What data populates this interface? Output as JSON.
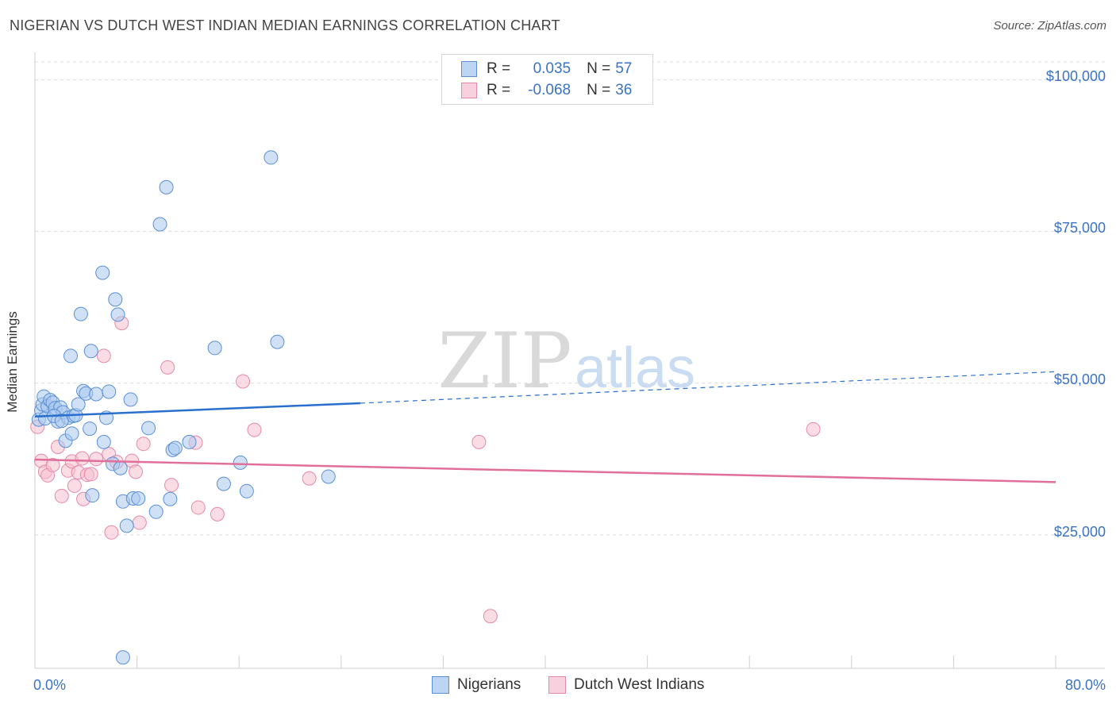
{
  "title": "NIGERIAN VS DUTCH WEST INDIAN MEDIAN EARNINGS CORRELATION CHART",
  "source": "Source: ZipAtlas.com",
  "watermark": {
    "zip": "ZIP",
    "atlas": "atlas"
  },
  "colors": {
    "blue_fill": "#a9c8ef",
    "blue_stroke": "#5b8fd6",
    "blue_line": "#2a6fce",
    "pink_fill": "#f5bfd0",
    "pink_stroke": "#e48aa8",
    "pink_line": "#e0709a",
    "grid": "#dcdcdc",
    "axis_text": "#3a72c4"
  },
  "legend": {
    "rows": [
      {
        "r_label": "R =",
        "r_value": "0.035",
        "n_label": "N =",
        "n_value": "57"
      },
      {
        "r_label": "R =",
        "r_value": "-0.068",
        "n_label": "N =",
        "n_value": "36"
      }
    ]
  },
  "bottom_legend": {
    "nigerians": "Nigerians",
    "dutch": "Dutch West Indians"
  },
  "chart_data": {
    "type": "scatter",
    "title": "NIGERIAN VS DUTCH WEST INDIAN MEDIAN EARNINGS CORRELATION CHART",
    "xlabel": "",
    "ylabel": "Median Earnings",
    "xlim": [
      0,
      80
    ],
    "ylim": [
      3000,
      104000
    ],
    "x_tick_labels": [
      "0.0%",
      "80.0%"
    ],
    "y_tick_labels": [
      "$25,000",
      "$50,000",
      "$75,000",
      "$100,000"
    ],
    "y_ticks": [
      25000,
      50000,
      75000,
      100000
    ],
    "series": [
      {
        "name": "Nigerians",
        "R": 0.035,
        "N": 57,
        "trend": {
          "x": [
            0,
            25.5
          ],
          "y": [
            44500,
            46700
          ],
          "dashed_to": [
            80,
            51900
          ]
        },
        "points": [
          [
            0.3,
            44000
          ],
          [
            0.5,
            45500
          ],
          [
            0.6,
            46500
          ],
          [
            0.7,
            47800
          ],
          [
            0.8,
            44200
          ],
          [
            1.0,
            46200
          ],
          [
            1.2,
            47200
          ],
          [
            1.4,
            46800
          ],
          [
            1.6,
            45900
          ],
          [
            1.8,
            43700
          ],
          [
            2.0,
            46000
          ],
          [
            2.2,
            45200
          ],
          [
            2.4,
            40500
          ],
          [
            2.6,
            44300
          ],
          [
            2.8,
            54500
          ],
          [
            2.9,
            41700
          ],
          [
            3.0,
            44600
          ],
          [
            3.2,
            44700
          ],
          [
            3.4,
            46500
          ],
          [
            3.6,
            61400
          ],
          [
            3.8,
            48700
          ],
          [
            4.0,
            48300
          ],
          [
            4.3,
            42500
          ],
          [
            4.4,
            55300
          ],
          [
            4.5,
            31500
          ],
          [
            4.8,
            48200
          ],
          [
            5.3,
            68200
          ],
          [
            5.4,
            40300
          ],
          [
            5.6,
            44300
          ],
          [
            5.8,
            48600
          ],
          [
            6.1,
            36700
          ],
          [
            6.3,
            63800
          ],
          [
            6.5,
            61300
          ],
          [
            6.7,
            36000
          ],
          [
            6.9,
            30500
          ],
          [
            7.2,
            26500
          ],
          [
            7.5,
            47300
          ],
          [
            7.7,
            31000
          ],
          [
            8.1,
            31000
          ],
          [
            8.9,
            42600
          ],
          [
            9.5,
            28800
          ],
          [
            9.8,
            76200
          ],
          [
            10.3,
            82300
          ],
          [
            10.6,
            30900
          ],
          [
            10.8,
            39000
          ],
          [
            11.0,
            39300
          ],
          [
            12.1,
            40300
          ],
          [
            14.1,
            55800
          ],
          [
            14.8,
            33400
          ],
          [
            16.1,
            36900
          ],
          [
            16.6,
            32200
          ],
          [
            18.5,
            87200
          ],
          [
            19.0,
            56800
          ],
          [
            23.0,
            34600
          ],
          [
            6.9,
            4800
          ],
          [
            1.5,
            44600
          ],
          [
            2.1,
            43800
          ]
        ]
      },
      {
        "name": "Dutch West Indians",
        "R": -0.068,
        "N": 36,
        "trend": {
          "x": [
            0,
            80
          ],
          "y": [
            37400,
            33700
          ]
        },
        "points": [
          [
            0.2,
            42800
          ],
          [
            0.5,
            37200
          ],
          [
            0.8,
            35400
          ],
          [
            1.0,
            34800
          ],
          [
            1.4,
            36500
          ],
          [
            1.8,
            39500
          ],
          [
            2.1,
            31400
          ],
          [
            2.6,
            35600
          ],
          [
            2.9,
            37100
          ],
          [
            3.1,
            33100
          ],
          [
            3.4,
            35300
          ],
          [
            3.7,
            37600
          ],
          [
            3.8,
            30900
          ],
          [
            4.1,
            34900
          ],
          [
            4.4,
            35000
          ],
          [
            4.8,
            37500
          ],
          [
            5.4,
            54500
          ],
          [
            5.8,
            38300
          ],
          [
            6.0,
            25400
          ],
          [
            6.4,
            37000
          ],
          [
            6.8,
            59900
          ],
          [
            7.6,
            37200
          ],
          [
            7.9,
            35400
          ],
          [
            8.2,
            27000
          ],
          [
            8.5,
            40000
          ],
          [
            10.4,
            52600
          ],
          [
            10.7,
            33200
          ],
          [
            12.6,
            40200
          ],
          [
            12.8,
            29500
          ],
          [
            14.3,
            28400
          ],
          [
            16.3,
            50300
          ],
          [
            17.2,
            42300
          ],
          [
            21.5,
            34300
          ],
          [
            34.8,
            40300
          ],
          [
            35.7,
            11600
          ],
          [
            61.0,
            42400
          ]
        ]
      }
    ]
  }
}
